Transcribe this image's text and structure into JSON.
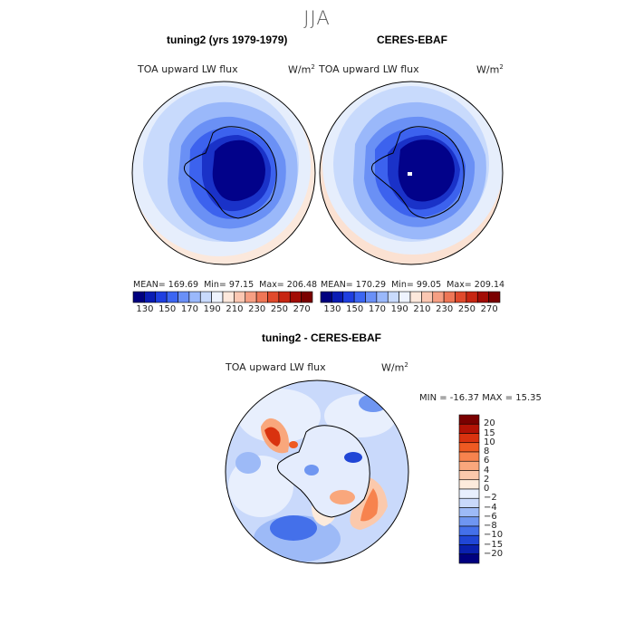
{
  "season": "JJA",
  "panels": [
    {
      "title": "tuning2 (yrs 1979-1979)",
      "variable": "TOA upward LW flux",
      "units": "W/m",
      "units_exp": "2",
      "stats": {
        "mean": "MEAN= 169.69",
        "min": "Min=   97.15",
        "max": "Max= 206.48"
      }
    },
    {
      "title": "CERES-EBAF",
      "variable": "TOA upward LW flux",
      "units": "W/m",
      "units_exp": "2",
      "stats": {
        "mean": "MEAN= 170.29",
        "min": "Min=   99.05",
        "max": "Max= 209.14"
      }
    }
  ],
  "abs_colorbar": {
    "labels": [
      "130",
      "150",
      "170",
      "190",
      "210",
      "230",
      "250",
      "270"
    ],
    "colors": [
      "#00007f",
      "#0a1cb4",
      "#1f3fe0",
      "#3c66f2",
      "#6a90f7",
      "#9ab8fb",
      "#c8dafd",
      "#eef3fe",
      "#fde8dc",
      "#fbc7b2",
      "#f69f83",
      "#ee7656",
      "#e04a2c",
      "#c72612",
      "#a20c05",
      "#7a0000"
    ]
  },
  "diff_panel": {
    "title": "tuning2 - CERES-EBAF",
    "variable": "TOA upward LW flux",
    "units": "W/m",
    "units_exp": "2",
    "minmax": "MIN = -16.37 MAX =  15.35"
  },
  "diff_colorbar": {
    "labels": [
      "20",
      "15",
      "10",
      "8",
      "6",
      "4",
      "2",
      "0",
      "−2",
      "−4",
      "−6",
      "−8",
      "−10",
      "−15",
      "−20"
    ],
    "colors": [
      "#7a0000",
      "#b31205",
      "#d9320f",
      "#ee5a22",
      "#f7834e",
      "#f9a77c",
      "#fbc9ac",
      "#fdebdc",
      "#e8effd",
      "#c9d9fb",
      "#9dbaf7",
      "#6f96f1",
      "#4470ea",
      "#2046d6",
      "#0a20ae",
      "#00007f"
    ]
  },
  "chart_data": [
    {
      "type": "heatmap",
      "title": "tuning2 (yrs 1979-1979)",
      "projection": "south polar stereographic",
      "variable": "TOA upward LW flux",
      "units": "W/m2",
      "levels": [
        130,
        140,
        150,
        160,
        170,
        180,
        190,
        200,
        210,
        220,
        230,
        240,
        250,
        260,
        270
      ],
      "mean": 169.69,
      "min": 97.15,
      "max": 206.48
    },
    {
      "type": "heatmap",
      "title": "CERES-EBAF",
      "projection": "south polar stereographic",
      "variable": "TOA upward LW flux",
      "units": "W/m2",
      "levels": [
        130,
        140,
        150,
        160,
        170,
        180,
        190,
        200,
        210,
        220,
        230,
        240,
        250,
        260,
        270
      ],
      "mean": 170.29,
      "min": 99.05,
      "max": 209.14
    },
    {
      "type": "heatmap",
      "title": "tuning2 - CERES-EBAF",
      "projection": "south polar stereographic",
      "variable": "TOA upward LW flux",
      "units": "W/m2",
      "levels": [
        -20,
        -15,
        -10,
        -8,
        -6,
        -4,
        -2,
        0,
        2,
        4,
        6,
        8,
        10,
        15,
        20
      ],
      "min": -16.37,
      "max": 15.35
    }
  ]
}
